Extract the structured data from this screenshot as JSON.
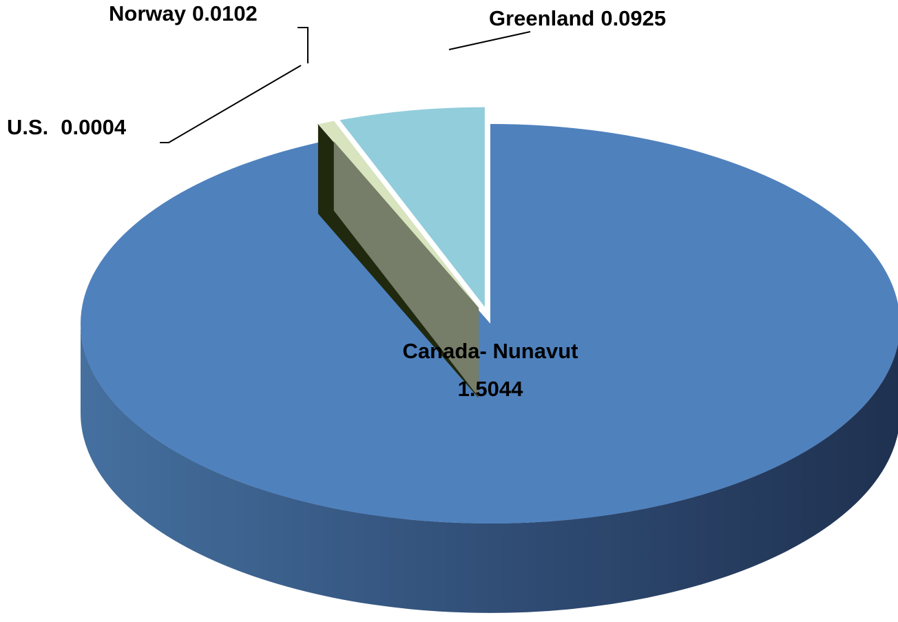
{
  "chart_data": {
    "type": "pie",
    "categories": [
      "Canada- Nunavut",
      "U.S.",
      "Norway",
      "Greenland"
    ],
    "values": [
      1.5044,
      0.0004,
      0.0102,
      0.0925
    ],
    "colors": [
      "#4f81bd",
      "#3a4a19",
      "#d7e4bd",
      "#92cddc"
    ]
  }
}
